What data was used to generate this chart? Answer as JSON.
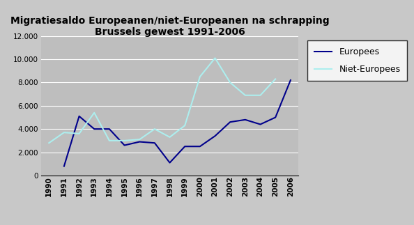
{
  "title": "Migratiesaldo Europeanen/niet-Europeanen na schrapping\nBrussels gewest 1991-2006",
  "years": [
    1990,
    1991,
    1992,
    1993,
    1994,
    1995,
    1996,
    1997,
    1998,
    1999,
    2000,
    2001,
    2002,
    2003,
    2004,
    2005,
    2006
  ],
  "europees": [
    null,
    800,
    5100,
    4000,
    4000,
    2600,
    2900,
    2800,
    1100,
    2500,
    2500,
    3400,
    4600,
    4800,
    4400,
    5000,
    8200
  ],
  "niet_europees": [
    2800,
    3700,
    3600,
    5400,
    3000,
    3000,
    3100,
    4000,
    3300,
    4300,
    8500,
    10100,
    8000,
    6900,
    6900,
    8300
  ],
  "niet_europees_years": [
    1990,
    1991,
    1992,
    1993,
    1994,
    1995,
    1996,
    1997,
    1998,
    1999,
    2000,
    2001,
    2002,
    2003,
    2004,
    2005
  ],
  "europees_color": "#00008B",
  "niet_europees_color": "#ADEEEE",
  "fig_bg_color": "#C8C8C8",
  "plot_bg_color": "#BEBEBE",
  "ylim": [
    0,
    12000
  ],
  "yticks": [
    0,
    2000,
    4000,
    6000,
    8000,
    10000,
    12000
  ],
  "grid_color": "#FFFFFF",
  "legend_labels": [
    "Europees",
    "Niet-Europees"
  ],
  "title_fontsize": 10,
  "tick_fontsize": 7.5
}
